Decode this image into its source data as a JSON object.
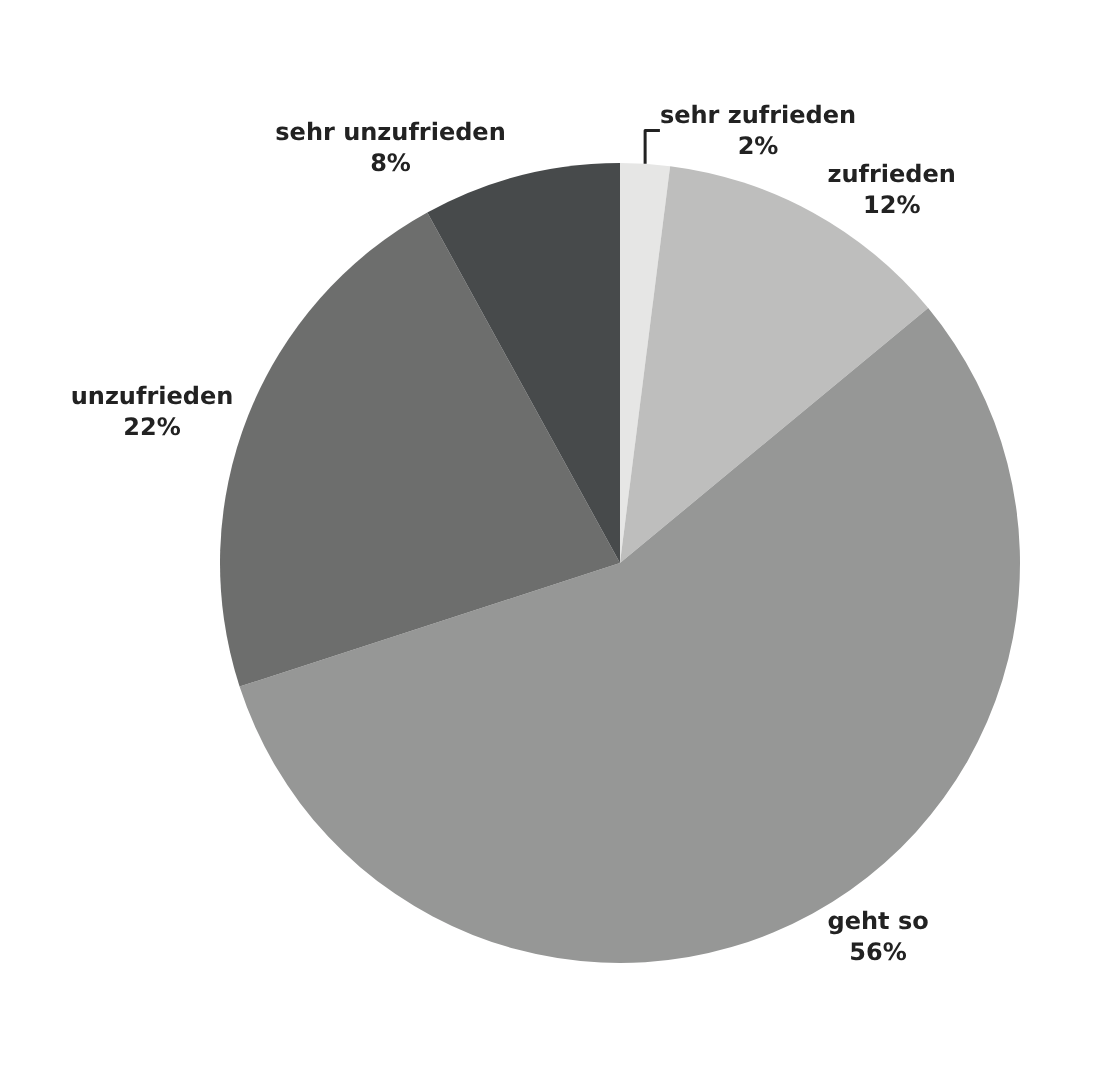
{
  "chart_data": {
    "type": "pie",
    "categories": [
      "sehr zufrieden",
      "zufrieden",
      "geht so",
      "unzufrieden",
      "sehr unzufrieden"
    ],
    "values": [
      2,
      12,
      56,
      22,
      8
    ],
    "value_labels": [
      "2%",
      "12%",
      "56%",
      "22%",
      "8%"
    ],
    "colors": [
      "#e6e6e5",
      "#bebebd",
      "#969796",
      "#6d6e6d",
      "#474a4b"
    ],
    "legend": false
  }
}
